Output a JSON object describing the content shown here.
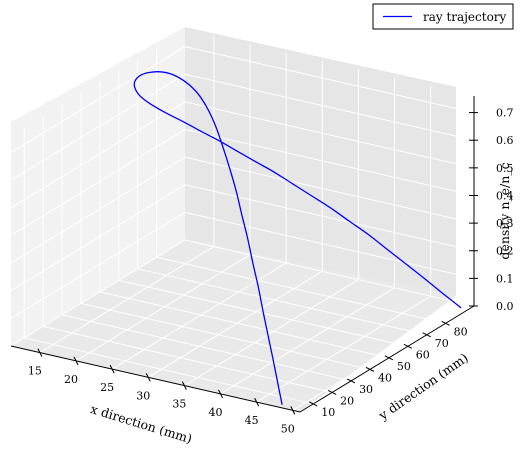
{
  "chart_data": {
    "type": "line",
    "projection": "3d",
    "xlabel": "x direction (mm)",
    "ylabel": "y direction (mm)",
    "zlabel": "density n_e/n_c",
    "xlim": [
      11,
      51
    ],
    "ylim": [
      3,
      95
    ],
    "zlim": [
      0,
      0.76
    ],
    "xticks": [
      15,
      20,
      25,
      30,
      35,
      40,
      45,
      50
    ],
    "yticks": [
      10,
      20,
      30,
      40,
      50,
      60,
      70,
      80
    ],
    "zticks": [
      0.0,
      0.1,
      0.2,
      0.3,
      0.4,
      0.5,
      0.6,
      0.7
    ],
    "xtick_labels": [
      "15",
      "20",
      "25",
      "30",
      "35",
      "40",
      "45",
      "50"
    ],
    "ytick_labels": [
      "10",
      "20",
      "30",
      "40",
      "50",
      "60",
      "70",
      "80"
    ],
    "ztick_labels": [
      "0.0",
      "0.1",
      "0.2",
      "0.3",
      "0.4",
      "0.5",
      "0.6",
      "0.7"
    ],
    "grid": true,
    "legend_position": "top-right",
    "series": [
      {
        "name": "ray trajectory",
        "color": "#0000ff",
        "x": [
          48.0,
          46.0,
          44.0,
          42.0,
          40.0,
          38.0,
          36.0,
          34.0,
          32.0,
          30.0,
          28.0,
          26.0,
          24.0,
          22.0,
          20.0,
          18.0,
          16.0,
          14.5,
          13.5,
          13.0,
          13.0,
          13.5,
          14.5,
          16.0,
          18.0,
          20.0,
          22.0,
          24.0,
          26.0,
          28.0,
          30.0,
          32.0,
          34.0,
          36.0,
          38.0,
          40.0,
          42.0,
          44.0,
          46.0,
          48.0,
          50.0
        ],
        "y": [
          5.0,
          10.2,
          15.4,
          20.5,
          25.6,
          30.6,
          35.5,
          40.3,
          45.0,
          49.5,
          53.8,
          57.8,
          61.5,
          64.7,
          67.3,
          69.0,
          69.4,
          68.5,
          66.5,
          63.8,
          61.0,
          58.8,
          57.6,
          57.4,
          58.2,
          59.6,
          61.3,
          63.2,
          65.3,
          67.4,
          69.6,
          71.8,
          74.0,
          76.2,
          78.4,
          80.7,
          82.9,
          85.1,
          87.3,
          89.6,
          92.0
        ],
        "z": [
          0.0,
          0.05,
          0.1,
          0.15,
          0.2,
          0.26,
          0.31,
          0.37,
          0.42,
          0.48,
          0.53,
          0.58,
          0.63,
          0.67,
          0.7,
          0.72,
          0.735,
          0.74,
          0.74,
          0.738,
          0.73,
          0.72,
          0.7,
          0.68,
          0.655,
          0.63,
          0.6,
          0.57,
          0.535,
          0.5,
          0.465,
          0.425,
          0.385,
          0.345,
          0.3,
          0.255,
          0.205,
          0.155,
          0.105,
          0.052,
          0.0
        ]
      }
    ]
  }
}
